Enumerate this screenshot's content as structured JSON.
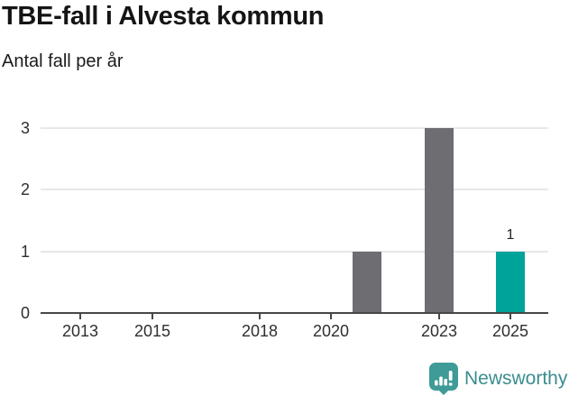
{
  "header": {
    "title": "TBE-fall i Alvesta kommun",
    "subtitle": "Antal fall per år"
  },
  "footer": {
    "brand": "Newsworthy",
    "brand_color": "#3b8c90",
    "icon_color": "#3f9b97",
    "icon_glyph_color": "#ffffff"
  },
  "chart_data": {
    "type": "bar",
    "title": "TBE-fall i Alvesta kommun",
    "subtitle": "Antal fall per år",
    "xlabel": "",
    "ylabel": "Antal fall per år",
    "x_tick_years": [
      "2013",
      "2015",
      "2018",
      "2020",
      "2023",
      "2025"
    ],
    "y_ticks": [
      0,
      1,
      2,
      3
    ],
    "ylim": [
      0,
      3
    ],
    "grid": "horizontal",
    "legend": "none",
    "bars": [
      {
        "year": 2021,
        "value": 1,
        "series": "previous",
        "label": ""
      },
      {
        "year": 2023,
        "value": 3,
        "series": "previous",
        "label": ""
      },
      {
        "year": 2025,
        "value": 1,
        "series": "latest",
        "label": "1"
      }
    ],
    "colors": {
      "previous": "#6d6d72",
      "latest": "#00a39a",
      "gridline": "#e7e7e7",
      "axis": "#474747"
    }
  }
}
